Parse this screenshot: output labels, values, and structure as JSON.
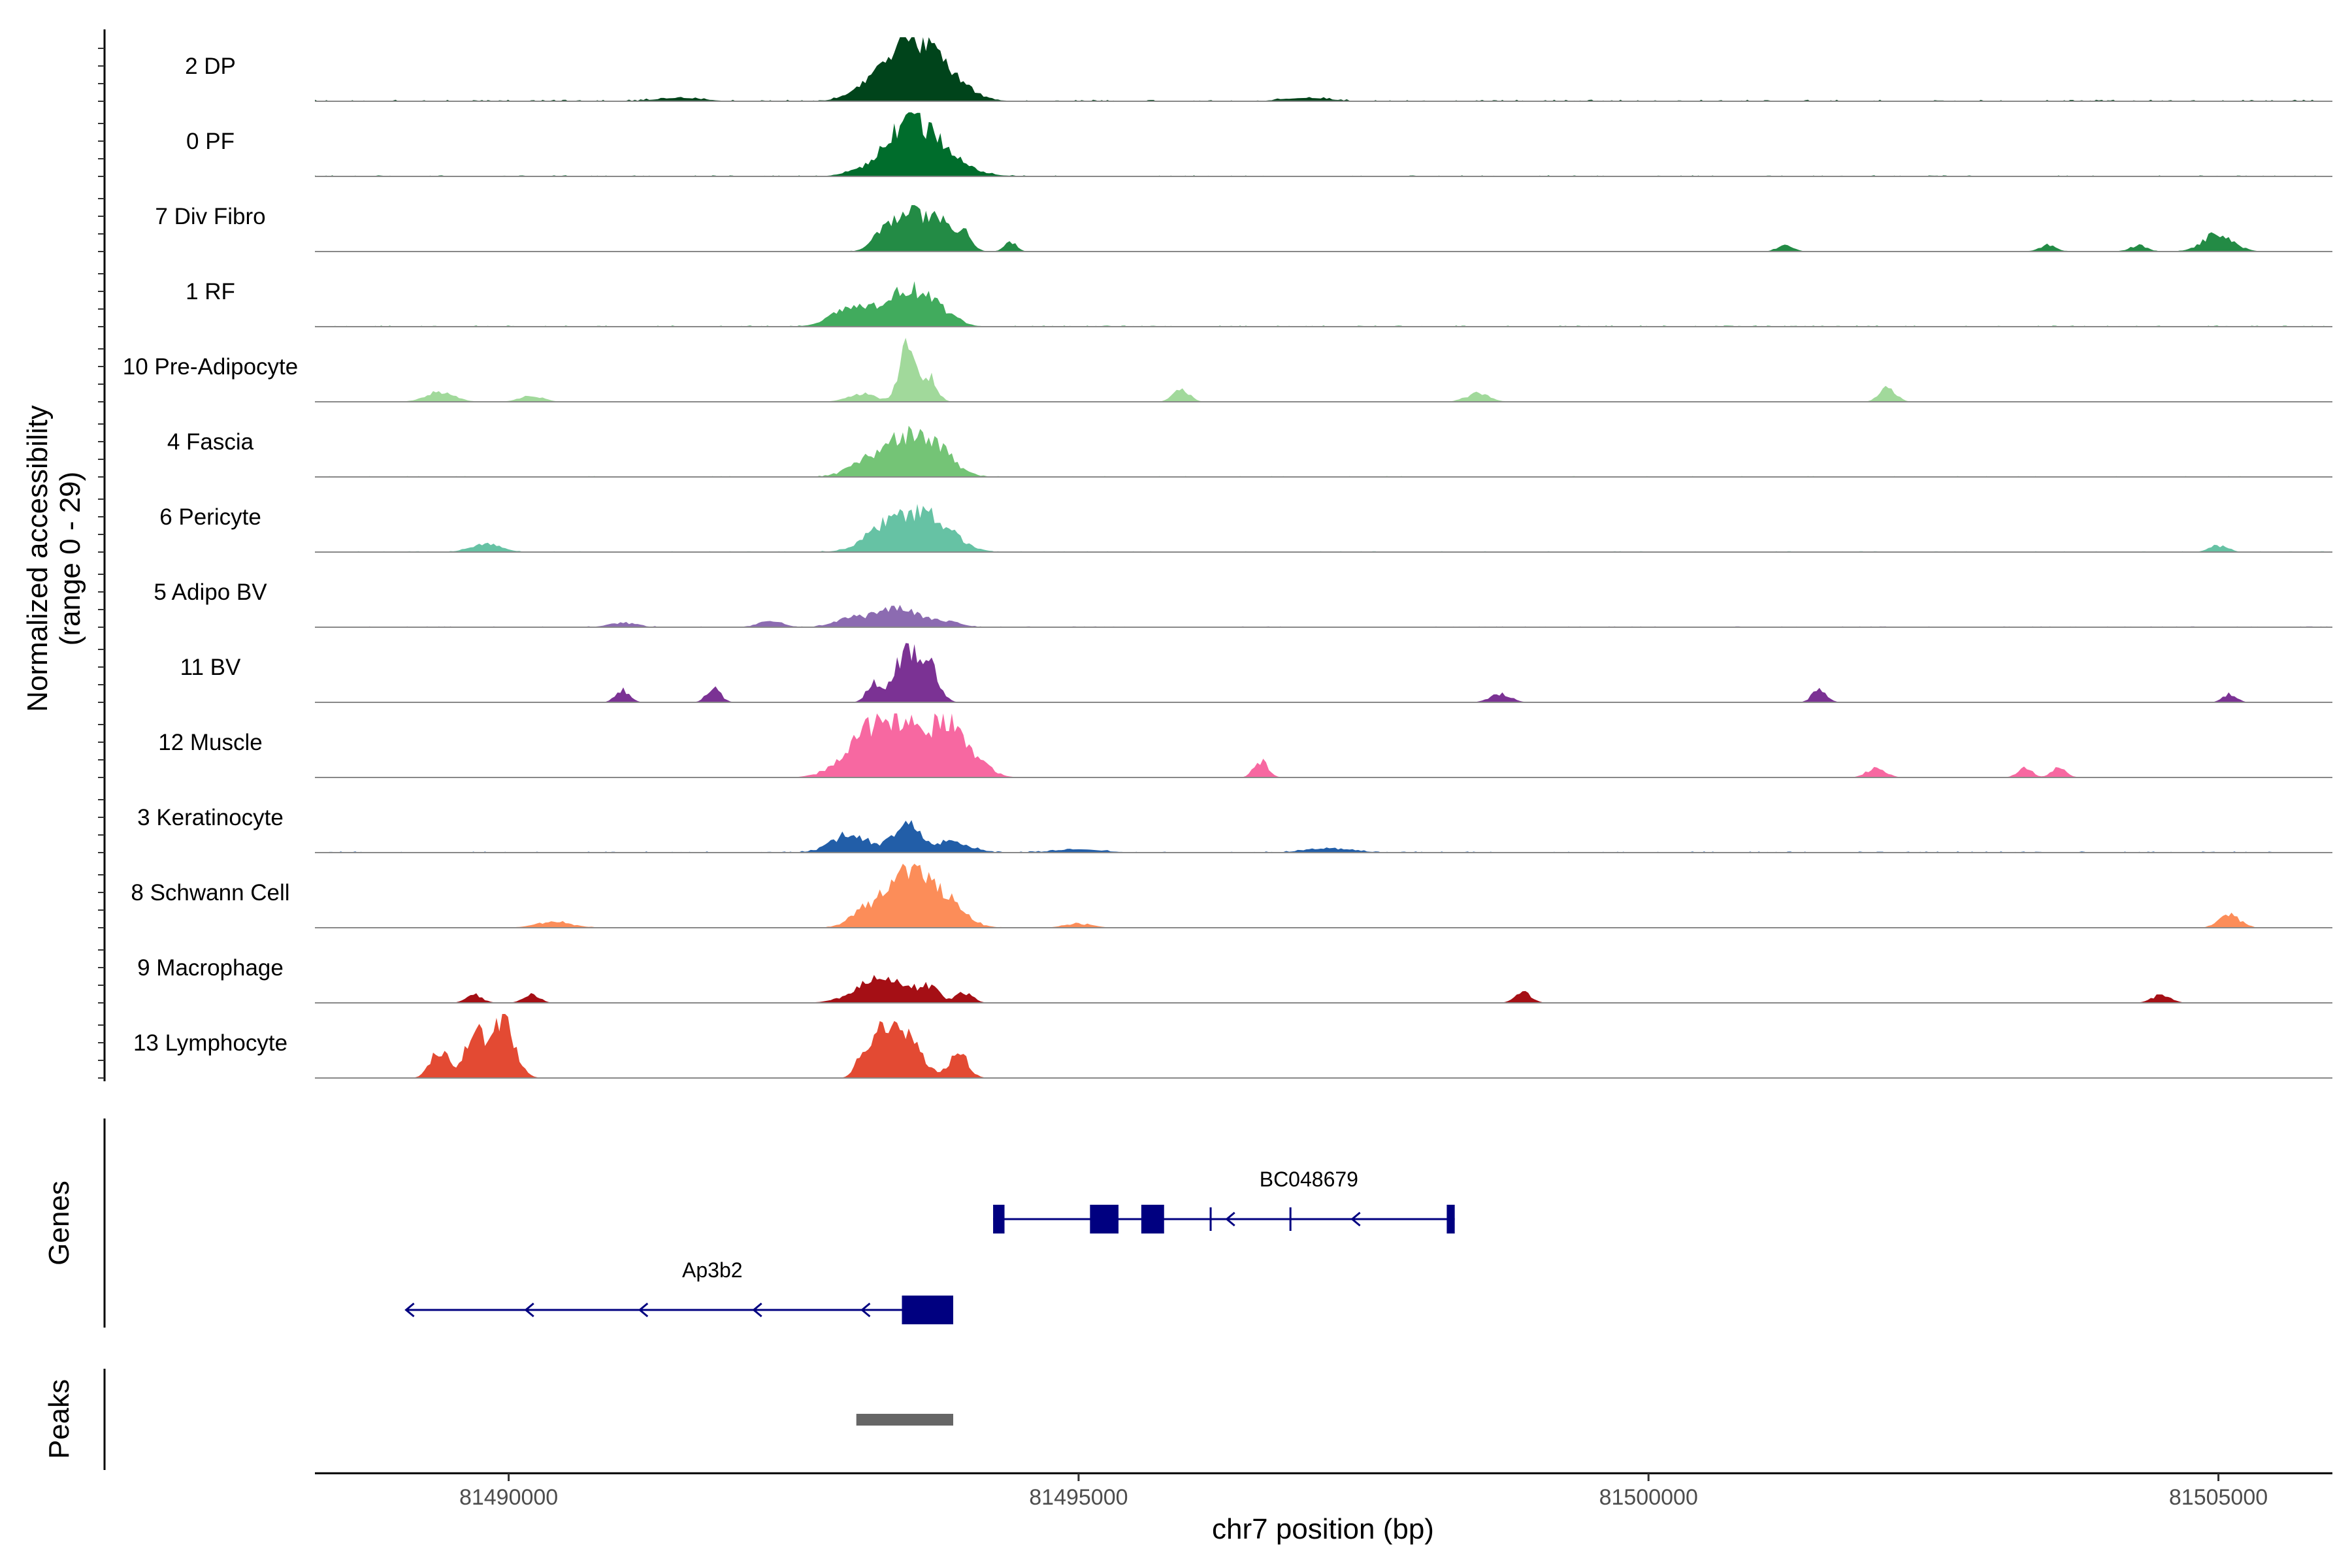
{
  "chart_data": {
    "type": "area",
    "title": "",
    "ylabel_lines": [
      "Normalized accessibility",
      "(range 0 - 29)"
    ],
    "ylim": [
      0,
      29
    ],
    "xlabel": "chr7 position (bp)",
    "xlim": [
      81488300,
      81506000
    ],
    "x_ticks": [
      81490000,
      81495000,
      81500000,
      81505000
    ],
    "x_tick_labels": [
      "81490000",
      "81495000",
      "81500000",
      "81505000"
    ],
    "series": [
      {
        "name": "2 DP",
        "color": "#00441b",
        "noise": 0.7,
        "peaks": [
          [
            81493500,
            220,
            26
          ],
          [
            81493800,
            200,
            12
          ],
          [
            81493100,
            150,
            3
          ],
          [
            81491500,
            200,
            1.5
          ],
          [
            81497000,
            200,
            1.5
          ]
        ]
      },
      {
        "name": "0 PF",
        "color": "#006d2c",
        "noise": 0.5,
        "peaks": [
          [
            81493500,
            200,
            23
          ],
          [
            81493800,
            220,
            9
          ],
          [
            81493100,
            150,
            2
          ]
        ]
      },
      {
        "name": "7 Div Fibro",
        "color": "#238b45",
        "noise": 0.2,
        "peaks": [
          [
            81493500,
            160,
            18
          ],
          [
            81493800,
            130,
            12
          ],
          [
            81493250,
            70,
            5
          ],
          [
            81494000,
            60,
            8
          ],
          [
            81494400,
            50,
            5
          ],
          [
            81505000,
            130,
            9
          ],
          [
            81501200,
            70,
            3
          ],
          [
            81503500,
            70,
            3
          ],
          [
            81504300,
            70,
            3
          ]
        ]
      },
      {
        "name": "1 RF",
        "color": "#41ab5d",
        "noise": 0.5,
        "peaks": [
          [
            81493500,
            200,
            18
          ],
          [
            81493000,
            170,
            8
          ],
          [
            81493800,
            130,
            4
          ]
        ]
      },
      {
        "name": "10 Pre-Adipocyte",
        "color": "#a1d99b",
        "noise": 0.1,
        "peaks": [
          [
            81493500,
            70,
            29
          ],
          [
            81493700,
            60,
            12
          ],
          [
            81493100,
            120,
            4
          ],
          [
            81489400,
            120,
            5
          ],
          [
            81490200,
            100,
            3
          ],
          [
            81495900,
            70,
            6
          ],
          [
            81498500,
            100,
            4
          ],
          [
            81502100,
            70,
            7
          ]
        ]
      },
      {
        "name": "4 Fascia",
        "color": "#74c476",
        "noise": 0.4,
        "peaks": [
          [
            81493500,
            200,
            20
          ],
          [
            81493100,
            140,
            6
          ],
          [
            81493800,
            140,
            8
          ]
        ]
      },
      {
        "name": "6 Pericyte",
        "color": "#66c2a4",
        "noise": 0.4,
        "peaks": [
          [
            81493500,
            220,
            17
          ],
          [
            81493800,
            160,
            8
          ],
          [
            81493200,
            150,
            4
          ],
          [
            81489800,
            130,
            4
          ],
          [
            81505000,
            80,
            3
          ]
        ]
      },
      {
        "name": "5 Adipo BV",
        "color": "#8c6bb1",
        "noise": 0.4,
        "peaks": [
          [
            81493400,
            180,
            9
          ],
          [
            81493000,
            140,
            4
          ],
          [
            81493800,
            140,
            3
          ],
          [
            81491000,
            120,
            2
          ],
          [
            81492300,
            100,
            3
          ]
        ]
      },
      {
        "name": "11 BV",
        "color": "#7b3294",
        "noise": 0.05,
        "peaks": [
          [
            81493500,
            110,
            26
          ],
          [
            81493700,
            80,
            14
          ],
          [
            81493200,
            60,
            9
          ],
          [
            81491000,
            60,
            6
          ],
          [
            81491800,
            60,
            7
          ],
          [
            81498700,
            90,
            4
          ],
          [
            81501500,
            60,
            7
          ],
          [
            81505100,
            60,
            4
          ]
        ]
      },
      {
        "name": "12 Muscle",
        "color": "#f768a1",
        "noise": 0.1,
        "peaks": [
          [
            81493450,
            260,
            26
          ],
          [
            81493850,
            110,
            20
          ],
          [
            81493100,
            200,
            12
          ],
          [
            81494100,
            120,
            8
          ],
          [
            81496600,
            60,
            8
          ],
          [
            81502000,
            80,
            5
          ],
          [
            81503300,
            60,
            5
          ],
          [
            81503600,
            60,
            5
          ]
        ]
      },
      {
        "name": "3 Keratinocyte",
        "color": "#225ea8",
        "noise": 0.5,
        "peaks": [
          [
            81493500,
            120,
            13
          ],
          [
            81493000,
            160,
            9
          ],
          [
            81493900,
            150,
            5
          ],
          [
            81497200,
            200,
            2
          ],
          [
            81495000,
            200,
            1.5
          ]
        ]
      },
      {
        "name": "8 Schwann Cell",
        "color": "#fc8d59",
        "noise": 0.2,
        "peaks": [
          [
            81493500,
            200,
            29
          ],
          [
            81493850,
            160,
            10
          ],
          [
            81493100,
            120,
            6
          ],
          [
            81505100,
            90,
            6
          ],
          [
            81490400,
            150,
            3
          ],
          [
            81495000,
            120,
            2
          ]
        ]
      },
      {
        "name": "9 Macrophage",
        "color": "#a50f15",
        "noise": 0.05,
        "peaks": [
          [
            81493300,
            220,
            13
          ],
          [
            81493700,
            80,
            6
          ],
          [
            81494000,
            70,
            5
          ],
          [
            81489700,
            70,
            4
          ],
          [
            81490200,
            70,
            4
          ],
          [
            81498900,
            70,
            5
          ],
          [
            81504500,
            80,
            4
          ]
        ]
      },
      {
        "name": "13 Lymphocyte",
        "color": "#e34a33",
        "noise": 0.0,
        "peaks": [
          [
            81493450,
            150,
            24
          ],
          [
            81493250,
            60,
            12
          ],
          [
            81493950,
            80,
            12
          ],
          [
            81489400,
            80,
            14
          ],
          [
            81489700,
            80,
            22
          ],
          [
            81489950,
            100,
            29
          ],
          [
            81493100,
            60,
            10
          ]
        ]
      }
    ],
    "genes": [
      {
        "name": "BC048679",
        "strand": "-",
        "start": 81494250,
        "end": 81498300,
        "exons": [
          [
            81494250,
            81494350
          ],
          [
            81495100,
            81495350
          ],
          [
            81495550,
            81495750
          ],
          [
            81496150,
            81496160
          ],
          [
            81496850,
            81496860
          ],
          [
            81498230,
            81498300
          ]
        ],
        "arrows": [
          81496300,
          81497400
        ]
      },
      {
        "name": "Ap3b2",
        "strand": "-",
        "start": 81489100,
        "end": 81493900,
        "exons": [
          [
            81493450,
            81493900
          ]
        ],
        "arrows": [
          81489100,
          81490150,
          81491150,
          81492150,
          81493100
        ]
      }
    ],
    "peaks_track": [
      [
        81493050,
        81493900
      ]
    ],
    "panel_labels": [
      "Genes",
      "Peaks"
    ],
    "peaks_color": "#666666",
    "gene_color": "#000080"
  }
}
